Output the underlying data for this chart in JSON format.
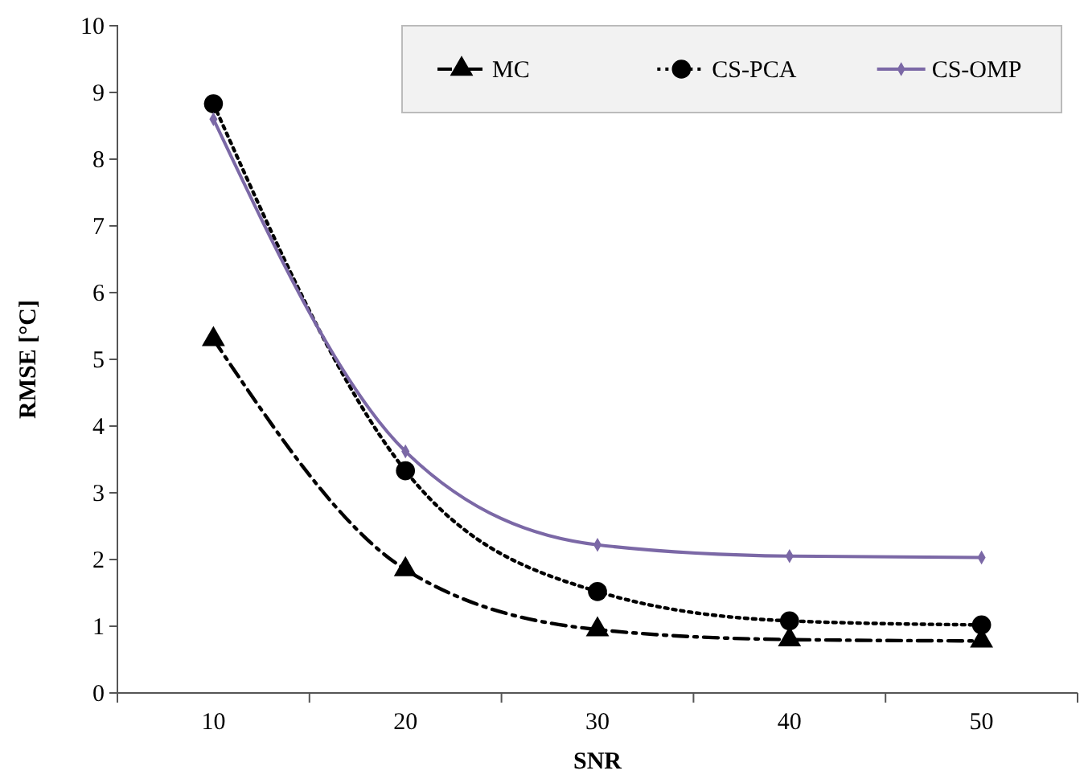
{
  "chart_data": {
    "type": "line",
    "xlabel": "SNR",
    "ylabel": "RMSE [°C]",
    "categories": [
      "10",
      "20",
      "30",
      "40",
      "50"
    ],
    "ylim": [
      0,
      10
    ],
    "yticks": [
      0,
      1,
      2,
      3,
      4,
      5,
      6,
      7,
      8,
      9,
      10
    ],
    "legend": "top right",
    "series": [
      {
        "name": "MC",
        "color": "#000000",
        "marker": "triangle",
        "line_style": "dashdot",
        "values": [
          5.3,
          1.85,
          0.95,
          0.8,
          0.78
        ]
      },
      {
        "name": "CS-PCA",
        "color": "#000000",
        "marker": "circle",
        "line_style": "dotted",
        "values": [
          8.83,
          3.33,
          1.52,
          1.08,
          1.02
        ]
      },
      {
        "name": "CS-OMP",
        "color": "#7b68a6",
        "marker": "diamond",
        "line_style": "solid",
        "values": [
          8.6,
          3.62,
          2.22,
          2.05,
          2.03
        ]
      }
    ]
  }
}
